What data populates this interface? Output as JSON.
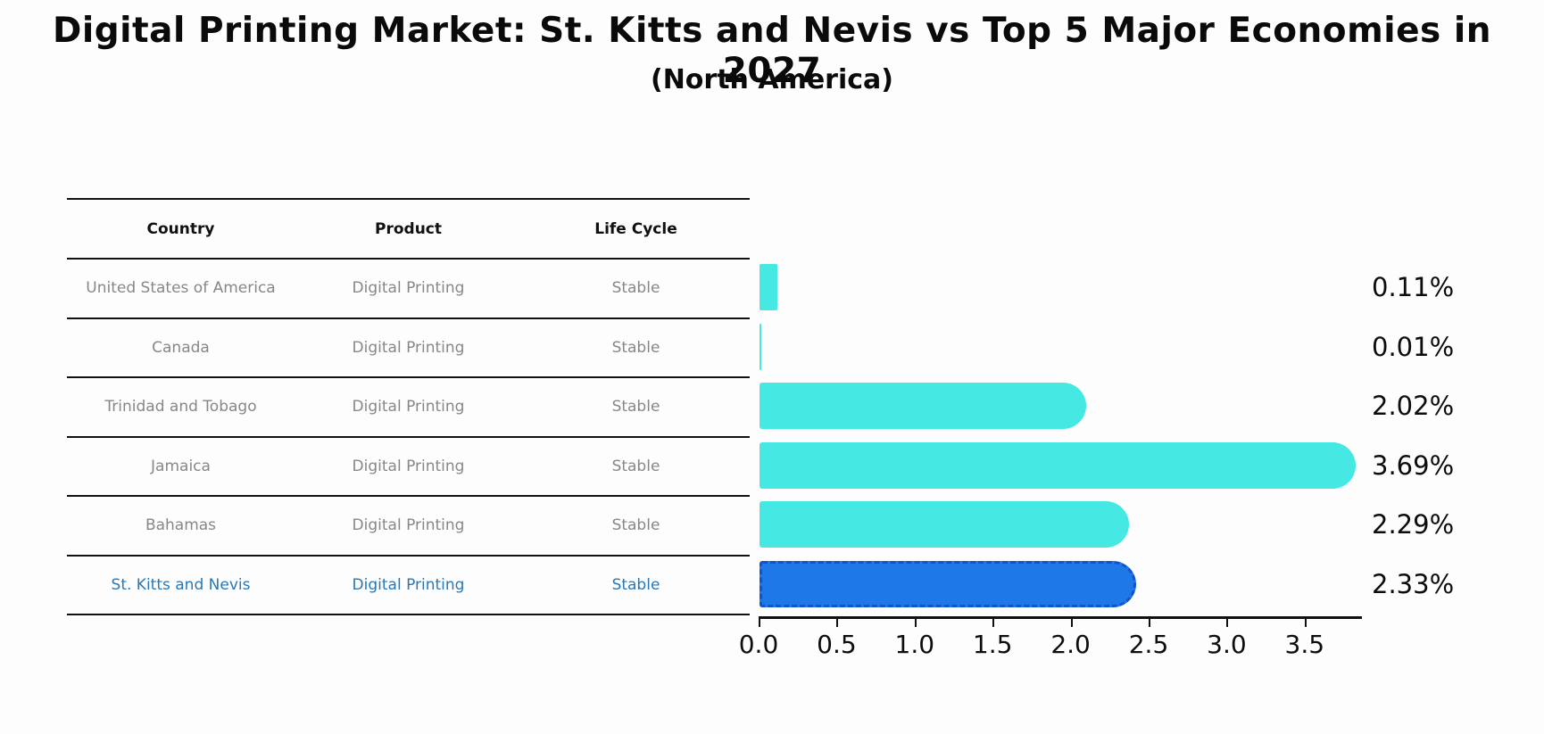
{
  "title": "Digital Printing Market: St. Kitts and Nevis vs Top 5 Major Economies in 2027",
  "subtitle": "(North America)",
  "table": {
    "headers": [
      "Country",
      "Product",
      "Life Cycle"
    ],
    "rows": [
      {
        "country": "United States of America",
        "product": "Digital Printing",
        "life_cycle": "Stable"
      },
      {
        "country": "Canada",
        "product": "Digital Printing",
        "life_cycle": "Stable"
      },
      {
        "country": "Trinidad and Tobago",
        "product": "Digital Printing",
        "life_cycle": "Stable"
      },
      {
        "country": "Jamaica",
        "product": "Digital Printing",
        "life_cycle": "Stable"
      },
      {
        "country": "Bahamas",
        "product": "Digital Printing",
        "life_cycle": "Stable"
      },
      {
        "country": "St. Kitts and Nevis",
        "product": "Digital Printing",
        "life_cycle": "Stable"
      }
    ]
  },
  "chart_data": {
    "type": "bar",
    "orientation": "horizontal",
    "title": "Digital Printing Market: St. Kitts and Nevis vs Top 5 Major Economies in 2027 (North America)",
    "categories": [
      "United States of America",
      "Canada",
      "Trinidad and Tobago",
      "Jamaica",
      "Bahamas",
      "St. Kitts and Nevis"
    ],
    "values": [
      0.11,
      0.01,
      2.02,
      3.69,
      2.29,
      2.33
    ],
    "value_labels": [
      "0.11%",
      "0.01%",
      "2.02%",
      "3.69%",
      "2.29%",
      "2.33%"
    ],
    "x_ticks": [
      "0.0",
      "0.5",
      "1.0",
      "1.5",
      "2.0",
      "2.5",
      "3.0",
      "3.5"
    ],
    "xlim": [
      0,
      3.85
    ],
    "grid": false,
    "legend": false,
    "highlight_index": 5,
    "bar_color": "#45e8e2",
    "highlight_color": "#1f78e8",
    "highlight_border_color": "#1254c9"
  },
  "styles": {
    "row_text_color": "#878787",
    "highlight_text_color": "#2878b8",
    "axis_color": "#111111"
  }
}
